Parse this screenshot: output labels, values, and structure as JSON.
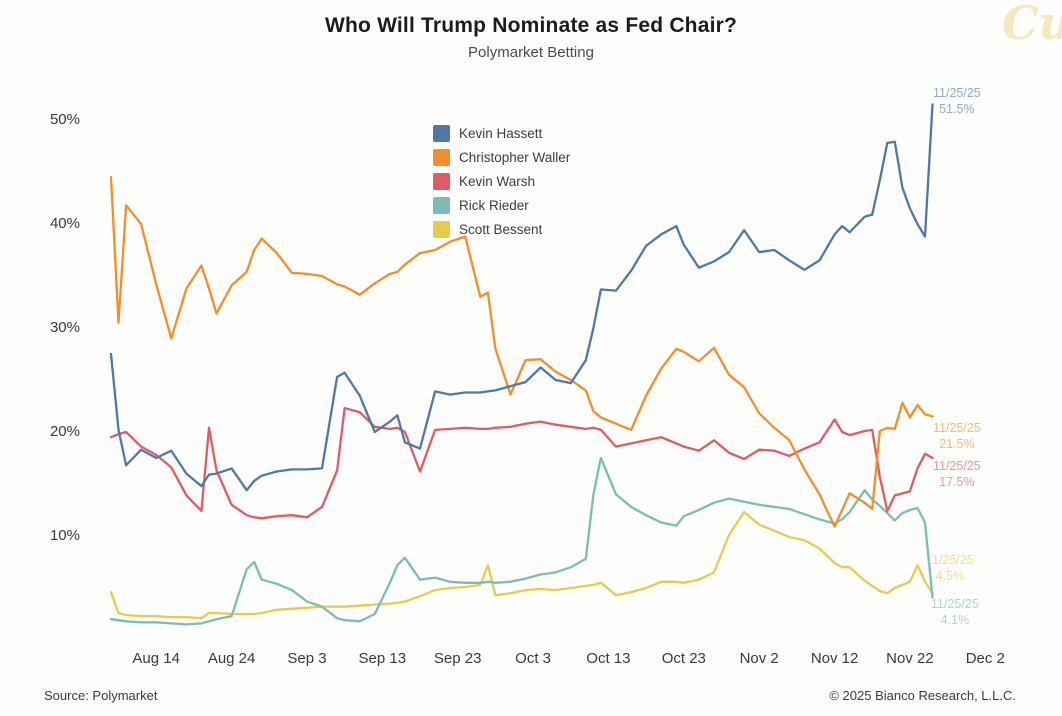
{
  "title": "Who Will Trump Nominate as Fed Chair?",
  "subtitle": "Polymarket Betting",
  "watermark": "Cu",
  "footer": {
    "source": "Source: Polymarket",
    "copyright": "© 2025 Bianco Research, L.L.C."
  },
  "y_axis": {
    "tick_labels": [
      "50%",
      "40%",
      "30%",
      "20%",
      "10%"
    ],
    "tick_values": [
      50,
      40,
      30,
      20,
      10
    ]
  },
  "x_axis": {
    "tick_labels": [
      "Aug 14",
      "Aug 24",
      "Sep 3",
      "Sep 13",
      "Sep 23",
      "Oct 3",
      "Oct 13",
      "Oct 23",
      "Nov 2",
      "Nov 12",
      "Nov 22",
      "Dec 2"
    ]
  },
  "annotations": [
    {
      "series": "Kevin Hassett",
      "date": "11/25/25",
      "value": "51.5%"
    },
    {
      "series": "Christopher Waller",
      "date": "11/25/25",
      "value": "21.5%"
    },
    {
      "series": "Kevin Warsh",
      "date": "11/25/25",
      "value": "17.5%"
    },
    {
      "series": "Scott Bessent",
      "date": "11/25/25",
      "value": "4.5%"
    },
    {
      "series": "Rick Rieder",
      "date": "11/25/25",
      "value": "4.1%"
    }
  ],
  "chart_data": {
    "type": "line",
    "title": "Who Will Trump Nominate as Fed Chair?",
    "subtitle": "Polymarket Betting",
    "xlabel": "",
    "ylabel": "Probability (%)",
    "ylim": [
      0,
      55
    ],
    "y_ticks": [
      10,
      20,
      30,
      40,
      50
    ],
    "grid": false,
    "legend_position": "upper-center",
    "x": [
      "8/8",
      "8/9",
      "8/10",
      "8/12",
      "8/14",
      "8/16",
      "8/18",
      "8/20",
      "8/21",
      "8/22",
      "8/24",
      "8/26",
      "8/27",
      "8/28",
      "8/30",
      "9/1",
      "9/3",
      "9/5",
      "9/7",
      "9/8",
      "9/10",
      "9/12",
      "9/14",
      "9/15",
      "9/16",
      "9/18",
      "9/20",
      "9/22",
      "9/24",
      "9/26",
      "9/27",
      "9/28",
      "9/30",
      "10/2",
      "10/4",
      "10/6",
      "10/8",
      "10/10",
      "10/11",
      "10/12",
      "10/14",
      "10/16",
      "10/18",
      "10/20",
      "10/22",
      "10/23",
      "10/25",
      "10/27",
      "10/29",
      "10/31",
      "11/2",
      "11/4",
      "11/6",
      "11/8",
      "11/10",
      "11/12",
      "11/13",
      "11/14",
      "11/16",
      "11/17",
      "11/18",
      "11/19",
      "11/20",
      "11/21",
      "11/22",
      "11/23",
      "11/24",
      "11/25"
    ],
    "series": [
      {
        "name": "Kevin Hassett",
        "color": "#4e79a7",
        "final": "11/25/25 = 51.5%",
        "values": [
          27.5,
          20.2,
          16.8,
          18.3,
          17.5,
          18.2,
          16.0,
          14.8,
          15.9,
          16.0,
          16.5,
          14.4,
          15.3,
          15.8,
          16.2,
          16.4,
          16.4,
          16.5,
          25.3,
          25.7,
          23.5,
          20.0,
          21.0,
          21.6,
          19.0,
          18.4,
          23.9,
          23.6,
          23.8,
          23.8,
          23.9,
          24.0,
          24.4,
          24.8,
          26.2,
          25.0,
          24.7,
          26.9,
          30.0,
          33.7,
          33.6,
          35.5,
          37.9,
          39.0,
          39.8,
          38.0,
          35.8,
          36.4,
          37.3,
          39.4,
          37.3,
          37.5,
          36.5,
          35.6,
          36.5,
          39.0,
          39.8,
          39.2,
          40.7,
          40.9,
          44.2,
          47.8,
          47.9,
          43.5,
          41.5,
          40.0,
          38.8,
          51.5
        ]
      },
      {
        "name": "Christopher Waller",
        "color": "#f28e2b",
        "final": "11/25/25 = 21.5%",
        "values": [
          44.5,
          30.5,
          41.8,
          40.0,
          34.2,
          29.0,
          33.8,
          36.0,
          33.8,
          31.4,
          34.1,
          35.4,
          37.5,
          38.6,
          37.2,
          35.3,
          35.2,
          35.0,
          34.2,
          34.0,
          33.2,
          34.3,
          35.2,
          35.4,
          36.1,
          37.2,
          37.5,
          38.3,
          38.8,
          33.0,
          33.4,
          28.0,
          23.6,
          26.9,
          27.0,
          25.8,
          25.0,
          24.0,
          22.0,
          21.4,
          20.8,
          20.2,
          23.5,
          26.1,
          28.0,
          27.7,
          26.8,
          28.1,
          25.5,
          24.3,
          21.8,
          20.4,
          19.2,
          16.4,
          14.0,
          10.9,
          12.5,
          14.1,
          13.2,
          12.6,
          20.1,
          20.4,
          20.3,
          22.8,
          21.4,
          22.6,
          21.7,
          21.5
        ]
      },
      {
        "name": "Kevin Warsh",
        "color": "#e15b64",
        "final": "11/25/25 = 17.5%",
        "values": [
          19.5,
          19.8,
          20.0,
          18.6,
          17.8,
          16.6,
          13.9,
          12.4,
          20.4,
          16.3,
          13.0,
          12.0,
          11.8,
          11.7,
          11.9,
          12.0,
          11.8,
          12.8,
          16.3,
          22.3,
          21.9,
          20.5,
          20.3,
          20.4,
          20.0,
          16.2,
          20.2,
          20.3,
          20.4,
          20.3,
          20.3,
          20.4,
          20.5,
          20.8,
          21.0,
          20.7,
          20.5,
          20.3,
          20.4,
          20.2,
          18.6,
          18.9,
          19.2,
          19.5,
          18.9,
          18.6,
          18.2,
          19.2,
          18.0,
          17.4,
          18.3,
          18.2,
          17.7,
          18.4,
          19.0,
          21.2,
          20.0,
          19.7,
          20.1,
          20.2,
          15.7,
          12.4,
          13.9,
          14.1,
          14.3,
          16.5,
          17.9,
          17.5
        ]
      },
      {
        "name": "Rick Rieder",
        "color": "#7cbcb5",
        "final": "11/25/25 = 4.1%",
        "values": [
          2.0,
          1.9,
          1.8,
          1.7,
          1.7,
          1.6,
          1.5,
          1.6,
          1.8,
          2.0,
          2.3,
          6.8,
          7.5,
          5.8,
          5.4,
          4.8,
          3.7,
          3.2,
          2.1,
          1.9,
          1.8,
          2.5,
          5.5,
          7.2,
          7.9,
          5.8,
          6.0,
          5.6,
          5.5,
          5.5,
          5.6,
          5.5,
          5.6,
          5.9,
          6.3,
          6.5,
          7.0,
          7.8,
          14.0,
          17.5,
          14.0,
          12.8,
          12.0,
          11.3,
          11.0,
          11.9,
          12.5,
          13.2,
          13.6,
          13.3,
          13.0,
          12.8,
          12.6,
          12.1,
          11.6,
          11.2,
          11.6,
          12.3,
          14.4,
          13.5,
          12.9,
          12.2,
          11.5,
          12.2,
          12.5,
          12.7,
          11.3,
          4.1
        ]
      },
      {
        "name": "Scott Bessent",
        "color": "#e6cb4f",
        "final": "11/25/25 = 4.5%",
        "values": [
          4.6,
          2.6,
          2.4,
          2.3,
          2.3,
          2.2,
          2.2,
          2.1,
          2.6,
          2.6,
          2.5,
          2.5,
          2.5,
          2.6,
          2.9,
          3.0,
          3.1,
          3.2,
          3.2,
          3.2,
          3.3,
          3.4,
          3.5,
          3.6,
          3.7,
          4.2,
          4.8,
          5.0,
          5.1,
          5.3,
          7.2,
          4.3,
          4.5,
          4.8,
          4.9,
          4.8,
          5.0,
          5.2,
          5.3,
          5.5,
          4.3,
          4.6,
          5.0,
          5.6,
          5.6,
          5.5,
          5.8,
          6.5,
          10.1,
          12.3,
          11.1,
          10.5,
          9.9,
          9.6,
          8.8,
          7.4,
          7.0,
          7.0,
          5.7,
          5.2,
          4.7,
          4.5,
          5.0,
          5.3,
          5.6,
          7.2,
          5.6,
          4.5
        ]
      }
    ]
  }
}
